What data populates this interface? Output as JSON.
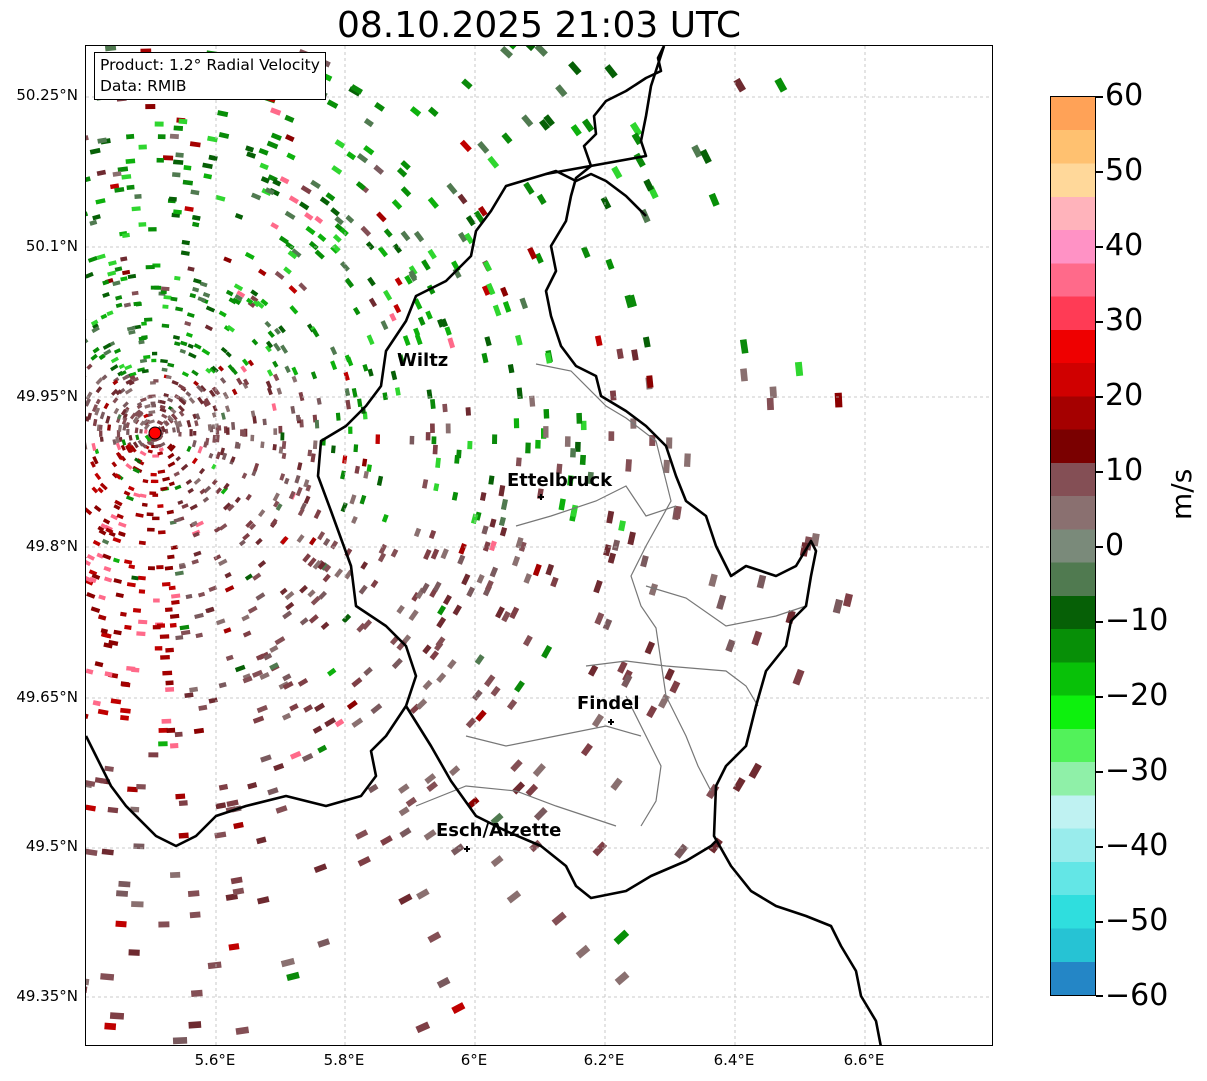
{
  "title": "08.10.2025 21:03 UTC",
  "info": {
    "product": "Product: 1.2° Radial Velocity",
    "source": "Data: RMIB"
  },
  "y_ticks": [
    "50.25°N",
    "50.1°N",
    "49.95°N",
    "49.8°N",
    "49.65°N",
    "49.5°N",
    "49.35°N"
  ],
  "x_ticks": [
    "5.6°E",
    "5.8°E",
    "6°E",
    "6.2°E",
    "6.4°E",
    "6.6°E"
  ],
  "cities": [
    {
      "name": "Wiltz"
    },
    {
      "name": "Ettelbruck"
    },
    {
      "name": "Findel"
    },
    {
      "name": "Esch/Alzette"
    }
  ],
  "colorbar": {
    "label": "m/s",
    "ticks": [
      "60",
      "50",
      "40",
      "30",
      "20",
      "10",
      "0",
      "−10",
      "−20",
      "−30",
      "−40",
      "−50",
      "−60"
    ],
    "range": [
      -60,
      60
    ],
    "colors": [
      "#2486c6",
      "#26c3d4",
      "#2fdede",
      "#63e6e6",
      "#99ecec",
      "#bff2f2",
      "#8ff0a8",
      "#52f25a",
      "#0df10d",
      "#08c108",
      "#078f07",
      "#066006",
      "#507a50",
      "#7a8a7a",
      "#8a7070",
      "#844f55",
      "#7a0000",
      "#a50000",
      "#d00000",
      "#ef0000",
      "#ff3b55",
      "#ff6a8a",
      "#ff92c5",
      "#ffb3bb",
      "#ffd89a",
      "#ffc170",
      "#ffa257"
    ]
  },
  "colors": {
    "border": "#000000",
    "grid": "#bbbbbb",
    "radar_marker": "#ff0000",
    "inbound_green": "#0a8a0a",
    "outbound_maroon": "#7f3f46",
    "red": "#b80000"
  }
}
